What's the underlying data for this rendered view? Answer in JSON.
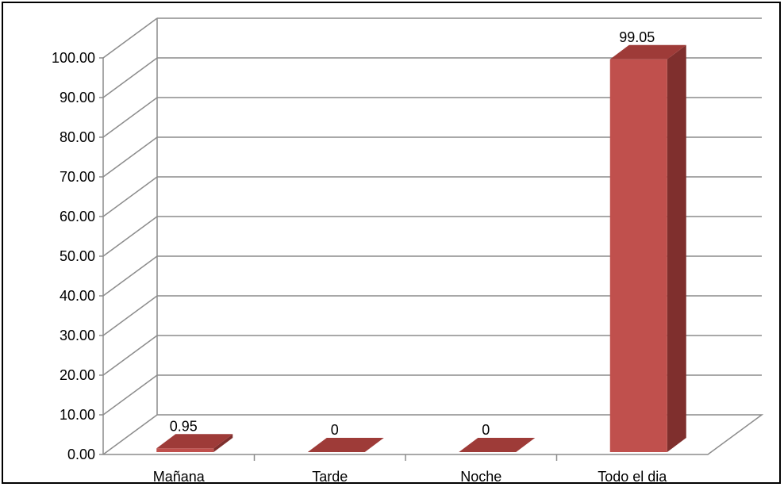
{
  "chart_data": {
    "type": "bar",
    "categories": [
      "Mañana",
      "Tarde",
      "Noche",
      "Todo el dia"
    ],
    "values": [
      0.95,
      0,
      0,
      99.05
    ],
    "data_labels": [
      "0.95",
      "0",
      "0",
      "99.05"
    ],
    "y_ticks": [
      "0.00",
      "10.00",
      "20.00",
      "30.00",
      "40.00",
      "50.00",
      "60.00",
      "70.00",
      "80.00",
      "90.00",
      "100.00"
    ],
    "ylim": [
      0,
      100
    ],
    "title": "",
    "xlabel": "",
    "ylabel": "",
    "grid": true,
    "legend": "none",
    "style": "3d-clustered-column",
    "colors": {
      "bar_front": "#C0504D",
      "bar_top": "#9E3B38",
      "bar_side": "#7F2F2D",
      "gridline": "#8C8C8C",
      "axis": "#8C8C8C"
    }
  }
}
